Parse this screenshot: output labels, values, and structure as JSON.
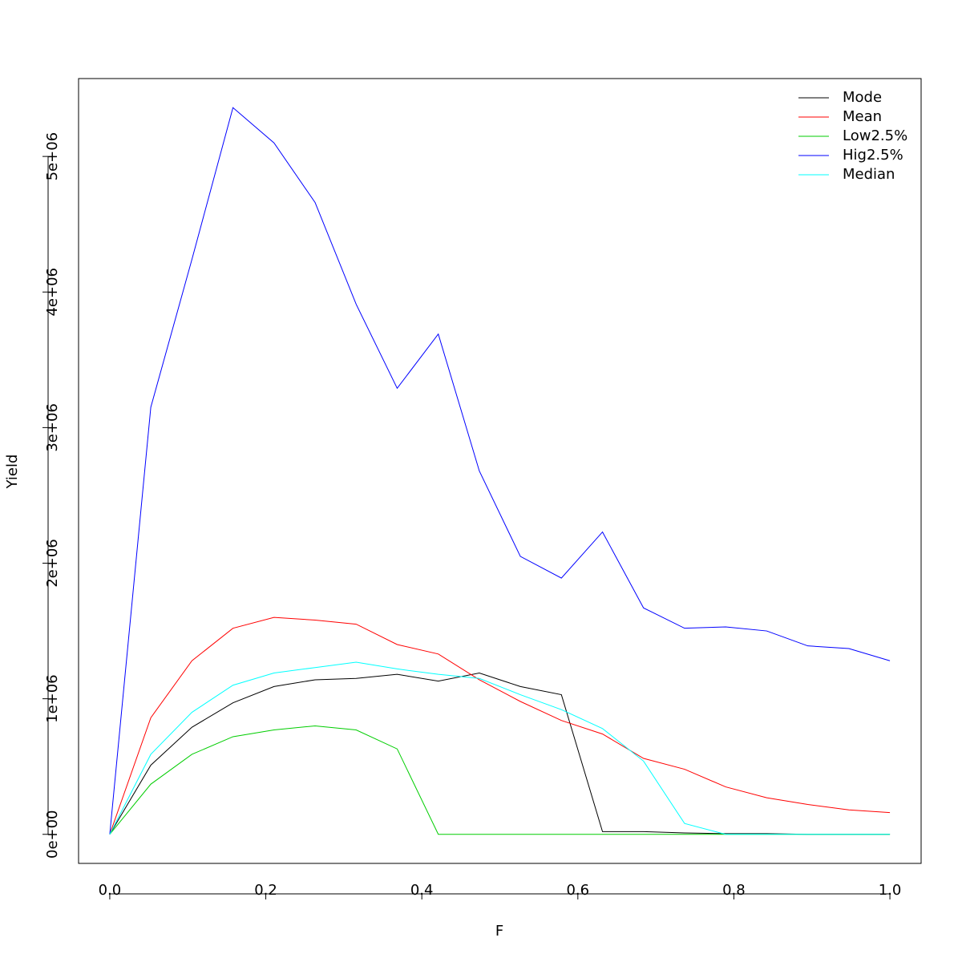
{
  "chart_data": {
    "type": "line",
    "xlabel": "F",
    "ylabel": "Yield",
    "x": [
      0,
      0.0526,
      0.1053,
      0.1579,
      0.2105,
      0.2632,
      0.3158,
      0.3684,
      0.4211,
      0.4737,
      0.5263,
      0.5789,
      0.6316,
      0.6842,
      0.7368,
      0.7895,
      0.8421,
      0.8947,
      0.9474,
      1
    ],
    "series": [
      {
        "name": "Mode",
        "color": "#000000",
        "values": [
          0,
          510000,
          790000,
          970000,
          1090000,
          1140000,
          1150000,
          1180000,
          1130000,
          1190000,
          1090000,
          1030000,
          20000,
          20000,
          10000,
          5000,
          5000,
          0,
          0,
          0
        ]
      },
      {
        "name": "Mean",
        "color": "#ff0000",
        "values": [
          0,
          860000,
          1280000,
          1520000,
          1600000,
          1580000,
          1550000,
          1400000,
          1330000,
          1140000,
          980000,
          840000,
          740000,
          560000,
          480000,
          350000,
          270000,
          220000,
          180000,
          160000
        ]
      },
      {
        "name": "Low2.5%",
        "color": "#00cd00",
        "values": [
          0,
          370000,
          590000,
          720000,
          770000,
          800000,
          770000,
          630000,
          0,
          0,
          0,
          0,
          0,
          0,
          0,
          0,
          0,
          0,
          0,
          0
        ]
      },
      {
        "name": "Hig2.5%",
        "color": "#0000ff",
        "values": [
          0,
          3150000,
          4240000,
          5360000,
          5100000,
          4660000,
          3910000,
          3290000,
          3690000,
          2680000,
          2050000,
          1890000,
          2230000,
          1670000,
          1520000,
          1530000,
          1500000,
          1390000,
          1370000,
          1280000
        ]
      },
      {
        "name": "Median",
        "color": "#00ffff",
        "values": [
          0,
          590000,
          900000,
          1100000,
          1190000,
          1230000,
          1270000,
          1220000,
          1180000,
          1150000,
          1030000,
          920000,
          780000,
          540000,
          80000,
          0,
          0,
          0,
          0,
          0
        ]
      }
    ],
    "xlim": [
      -0.04,
      1.04
    ],
    "xticks": [
      {
        "value": 0,
        "label": "0.0"
      },
      0.2,
      0.4,
      0.6,
      0.8,
      {
        "value": 1,
        "label": "1.0"
      }
    ],
    "ylim": [
      -214400,
      5574400
    ],
    "yticks": [
      {
        "value": 0,
        "label": "0e+00"
      },
      {
        "value": 1000000,
        "label": "1e+06"
      },
      {
        "value": 2000000,
        "label": "2e+06"
      },
      {
        "value": 3000000,
        "label": "3e+06"
      },
      {
        "value": 4000000,
        "label": "4e+06"
      },
      {
        "value": 5000000,
        "label": "5e+06"
      }
    ],
    "legend": "top-right"
  }
}
